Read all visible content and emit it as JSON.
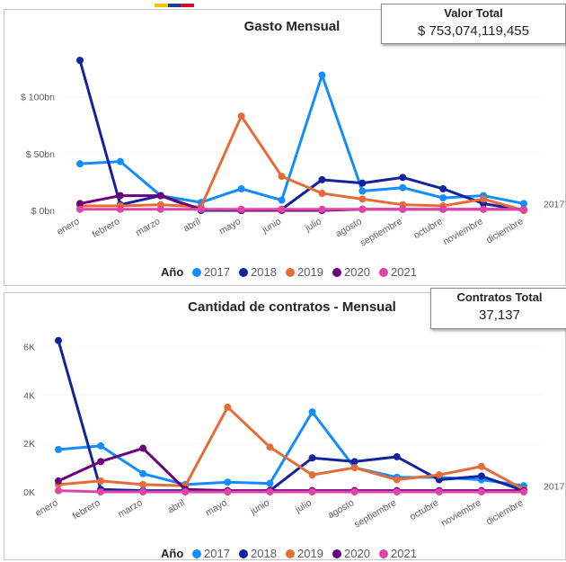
{
  "colors": {
    "2017": "#118dff",
    "2018": "#12239e",
    "2019": "#e66c37",
    "2020": "#6b007b",
    "2021": "#e044a7",
    "grid": "#e1dfdd",
    "flag": [
      "#f5c400",
      "#1f3c9c",
      "#d0112b"
    ]
  },
  "cards": {
    "total_value": {
      "label": "Valor Total",
      "value": "$ 753,074,119,455"
    },
    "total_contracts": {
      "label": "Contratos Total",
      "value": "37,137"
    }
  },
  "chart_data": [
    {
      "type": "line",
      "title": "Gasto Mensual",
      "categories": [
        "enero",
        "febrero",
        "marzo",
        "abril",
        "mayo",
        "junio",
        "julio",
        "agosto",
        "septiembre",
        "octubre",
        "noviembre",
        "diciembre"
      ],
      "y_ticks": [
        {
          "value": 0,
          "label": "$ 0bn"
        },
        {
          "value": 50,
          "label": "$ 50bn"
        },
        {
          "value": 100,
          "label": "$ 100bn"
        }
      ],
      "ylim": [
        0,
        140
      ],
      "grid": true,
      "legend": {
        "title": "Año",
        "position": "bottom"
      },
      "end_label": "2017",
      "series": [
        {
          "name": "2017",
          "values": [
            41,
            43,
            13,
            7,
            19,
            9,
            119,
            17,
            20,
            11,
            13,
            6
          ]
        },
        {
          "name": "2018",
          "values": [
            132,
            5,
            13,
            0,
            0,
            1,
            27,
            24,
            29,
            19,
            6,
            0
          ]
        },
        {
          "name": "2019",
          "values": [
            4,
            4,
            5,
            3,
            83,
            30,
            15,
            10,
            5,
            4,
            10,
            0
          ]
        },
        {
          "name": "2020",
          "values": [
            6,
            13,
            13,
            1,
            0,
            0,
            0,
            1,
            1,
            1,
            1,
            1
          ]
        },
        {
          "name": "2021",
          "values": [
            1,
            1,
            1,
            1,
            1,
            1,
            1,
            1,
            1,
            1,
            1,
            1
          ]
        }
      ]
    },
    {
      "type": "line",
      "title": "Cantidad de contratos - Mensual",
      "categories": [
        "enero",
        "febrero",
        "marzo",
        "abril",
        "mayo",
        "junio",
        "julio",
        "agosto",
        "septiembre",
        "octubre",
        "noviembre",
        "diciembre"
      ],
      "y_ticks": [
        {
          "value": 0,
          "label": "0K"
        },
        {
          "value": 2000,
          "label": "2K"
        },
        {
          "value": 4000,
          "label": "4K"
        },
        {
          "value": 6000,
          "label": "6K"
        }
      ],
      "ylim": [
        0,
        6500
      ],
      "grid": true,
      "legend": {
        "title": "Año",
        "position": "bottom"
      },
      "end_label": "2017",
      "series": [
        {
          "name": "2017",
          "values": [
            1750,
            1900,
            750,
            300,
            400,
            350,
            3300,
            1000,
            600,
            600,
            500,
            250
          ]
        },
        {
          "name": "2018",
          "values": [
            6250,
            100,
            50,
            50,
            0,
            50,
            1400,
            1250,
            1450,
            500,
            650,
            50
          ]
        },
        {
          "name": "2019",
          "values": [
            300,
            450,
            300,
            250,
            3500,
            1850,
            700,
            1000,
            500,
            700,
            1050,
            100
          ]
        },
        {
          "name": "2020",
          "values": [
            450,
            1250,
            1800,
            100,
            50,
            50,
            50,
            50,
            50,
            50,
            50,
            50
          ]
        },
        {
          "name": "2021",
          "values": [
            50,
            0,
            0,
            0,
            0,
            0,
            0,
            0,
            0,
            0,
            0,
            0
          ]
        }
      ]
    }
  ]
}
